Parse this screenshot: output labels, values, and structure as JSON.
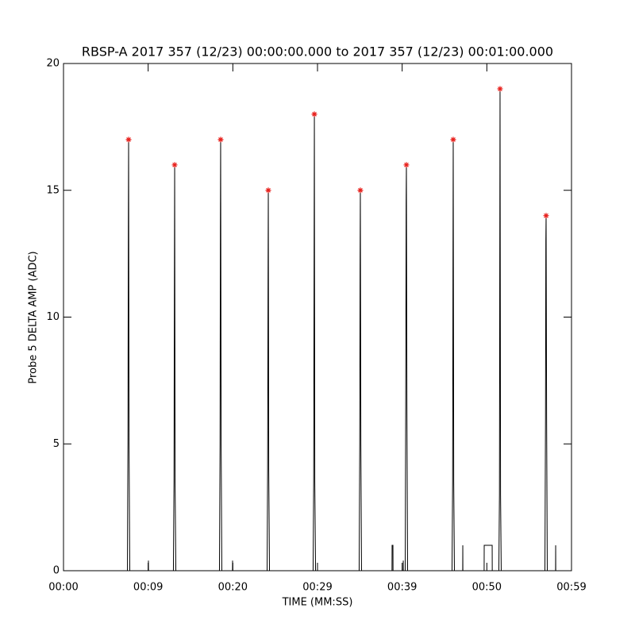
{
  "chart_data": {
    "type": "line",
    "title": "RBSP-A 2017 357 (12/23) 00:00:00.000 to 2017 357 (12/23) 00:01:00.000",
    "x_label": "TIME (MM:SS)",
    "y_label": "Probe 5 DELTA AMP (ADC)",
    "xlim": [
      0,
      60
    ],
    "ylim": [
      0,
      20
    ],
    "xticks": [
      {
        "value": 0,
        "label": "00:00"
      },
      {
        "value": 10,
        "label": "00:09"
      },
      {
        "value": 20,
        "label": "00:20"
      },
      {
        "value": 30,
        "label": "00:29"
      },
      {
        "value": 40,
        "label": "00:39"
      },
      {
        "value": 50,
        "label": "00:50"
      },
      {
        "value": 60,
        "label": "00:59"
      }
    ],
    "yticks": [
      0,
      5,
      10,
      15,
      20
    ],
    "series": [
      {
        "name": "trace",
        "color": "#000000",
        "x": [
          0,
          7.55,
          7.61,
          7.66,
          7.69,
          7.74,
          7.83,
          10.02,
          10.03,
          10.04,
          12.98,
          13.05,
          13.1,
          13.13,
          13.18,
          13.27,
          18.42,
          18.49,
          18.53,
          18.56,
          18.62,
          18.7,
          19.96,
          19.97,
          19.98,
          24.05,
          24.11,
          24.16,
          24.19,
          24.24,
          24.33,
          29.48,
          29.55,
          29.6,
          29.63,
          29.68,
          29.77,
          34.92,
          34.99,
          35.03,
          35.06,
          35.12,
          35.2,
          38.8,
          38.81,
          38.91,
          38.92,
          40.12,
          40.13,
          40.14,
          40.36,
          40.42,
          40.47,
          40.5,
          40.56,
          40.64,
          45.89,
          45.96,
          46.0,
          46.03,
          46.09,
          46.17,
          47.15,
          47.16,
          47.17,
          49.68,
          49.69,
          50.63,
          50.64,
          51.42,
          51.49,
          51.53,
          51.56,
          51.62,
          51.7,
          56.86,
          56.93,
          56.97,
          57.0,
          57.06,
          57.14,
          58.12,
          58.13,
          58.14,
          60
        ],
        "values": [
          0,
          0,
          5,
          13.5,
          17,
          5,
          0,
          0,
          0.4,
          0,
          0,
          3.5,
          11.5,
          16,
          3.5,
          0,
          0,
          5,
          13.5,
          17,
          5,
          0,
          0,
          0.4,
          0,
          0,
          4,
          11.5,
          15,
          4,
          0,
          0,
          3.5,
          12.5,
          18,
          3.5,
          0,
          0,
          5,
          12,
          15,
          5,
          0,
          0,
          1,
          1,
          0,
          0,
          0.4,
          0,
          0,
          6.5,
          14.5,
          16,
          6.5,
          0,
          0,
          3.5,
          12,
          17,
          3.5,
          0,
          0,
          1,
          0,
          0,
          1,
          1,
          0,
          0,
          3,
          12.5,
          19,
          3,
          0,
          0,
          6,
          13,
          14,
          6,
          0,
          0,
          1,
          0,
          0
        ]
      },
      {
        "name": "peaks",
        "color": "#e8201c",
        "x": [
          7.69,
          13.13,
          18.56,
          24.19,
          29.63,
          35.06,
          40.5,
          46.03,
          51.56,
          57.0
        ],
        "values": [
          17,
          16,
          17,
          15,
          18,
          15,
          16,
          17,
          19,
          14
        ]
      }
    ]
  }
}
